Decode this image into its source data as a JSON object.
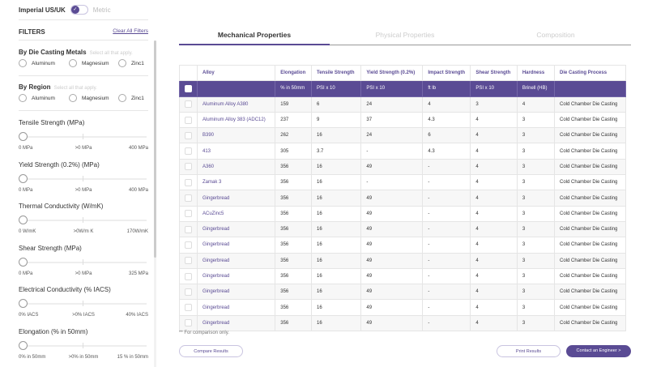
{
  "units": {
    "imperial": "Imperial US/UK",
    "metric": "Metric",
    "imperial_selected": true
  },
  "filters": {
    "title": "FILTERS",
    "clear_all": "Clear All Filters",
    "groups": [
      {
        "title": "By Die Casting Metals",
        "hint": "Select all that apply.",
        "options": [
          "Aluminum",
          "Magnesium",
          "Zinc1"
        ]
      },
      {
        "title": "By Region",
        "hint": "Select all that apply.",
        "options": [
          "Aluminum",
          "Magnesium",
          "Zinc1"
        ]
      }
    ],
    "sliders": [
      {
        "title": "Tensile Strength (MPa)",
        "min": "0 MPa",
        "mid": ">0 MPa",
        "max": "400 MPa",
        "value": 0
      },
      {
        "title": "Yield Strength (0.2%) (MPa)",
        "min": "0 MPa",
        "mid": ">0 MPa",
        "max": "400 MPa",
        "value": 0
      },
      {
        "title": "Thermal Conductivity (W/mK)",
        "min": "0 W/mK",
        "mid": ">0W/m K",
        "max": "170W/mK",
        "value": 0
      },
      {
        "title": "Shear Strength (MPa)",
        "min": "0 MPa",
        "mid": ">0 MPa",
        "max": "325 MPa",
        "value": 0
      },
      {
        "title": "Electrical Conductivity (% IACS)",
        "min": "0% IACS",
        "mid": ">0% IACS",
        "max": "40% IACS",
        "value": 0
      },
      {
        "title": "Elongation (% in 50mm)",
        "min": "0% in 50mm",
        "mid": ">0% in 50mm",
        "max": "15 % in 50mm",
        "value": 0
      }
    ]
  },
  "tabs": [
    {
      "label": "Mechanical Properties",
      "active": true
    },
    {
      "label": "Physical Properties",
      "active": false
    },
    {
      "label": "Composition",
      "active": false
    }
  ],
  "table": {
    "headers": [
      "Alloy",
      "Elongation",
      "Tensile Strength",
      "Yield Strength (0.2%)",
      "Impact Strength",
      "Shear Strength",
      "Hardness",
      "Die Casting Process"
    ],
    "units": [
      "",
      "% in 50mm",
      "PSI x 10",
      "PSI x 10",
      "ft lb",
      "PSI x 10",
      "Brinell (HB)",
      ""
    ],
    "rows": [
      [
        "Aluminum Alloy A380",
        "159",
        "6",
        "24",
        "4",
        "3",
        "4",
        "Cold Chamber Die Casting"
      ],
      [
        "Aluminum Alloy 383 (ADC12)",
        "237",
        "9",
        "37",
        "4.3",
        "4",
        "3",
        "Cold Chamber Die Casting"
      ],
      [
        "B390",
        "262",
        "16",
        "24",
        "6",
        "4",
        "3",
        "Cold Chamber Die Casting"
      ],
      [
        "413",
        "305",
        "3.7",
        "-",
        "4.3",
        "4",
        "3",
        "Cold Chamber Die Casting"
      ],
      [
        "A360",
        "356",
        "16",
        "49",
        "-",
        "4",
        "3",
        "Cold Chamber Die Casting"
      ],
      [
        "Zamak 3",
        "356",
        "16",
        "-",
        "-",
        "4",
        "3",
        "Cold Chamber Die Casting"
      ],
      [
        "Gingerbread",
        "356",
        "16",
        "49",
        "-",
        "4",
        "3",
        "Cold Chamber Die Casting"
      ],
      [
        "ACuZinc5",
        "356",
        "16",
        "49",
        "-",
        "4",
        "3",
        "Cold Chamber Die Casting"
      ],
      [
        "Gingerbread",
        "356",
        "16",
        "49",
        "-",
        "4",
        "3",
        "Cold Chamber Die Casting"
      ],
      [
        "Gingerbread",
        "356",
        "16",
        "49",
        "-",
        "4",
        "3",
        "Cold Chamber Die Casting"
      ],
      [
        "Gingerbread",
        "356",
        "16",
        "49",
        "-",
        "4",
        "3",
        "Cold Chamber Die Casting"
      ],
      [
        "Gingerbread",
        "356",
        "16",
        "49",
        "-",
        "4",
        "3",
        "Cold Chamber Die Casting"
      ],
      [
        "Gingerbread",
        "356",
        "16",
        "49",
        "-",
        "4",
        "3",
        "Cold Chamber Die Casting"
      ],
      [
        "Gingerbread",
        "356",
        "16",
        "49",
        "-",
        "4",
        "3",
        "Cold Chamber Die Casting"
      ],
      [
        "Gingerbread",
        "356",
        "16",
        "49",
        "-",
        "4",
        "3",
        "Cold Chamber Die Casting"
      ]
    ]
  },
  "note": "** For comparison only.",
  "buttons": {
    "compare": "Compare Results",
    "print": "Print Results",
    "contact": "Contact an Engineer >"
  },
  "colors": {
    "accent": "#5a4b94"
  }
}
